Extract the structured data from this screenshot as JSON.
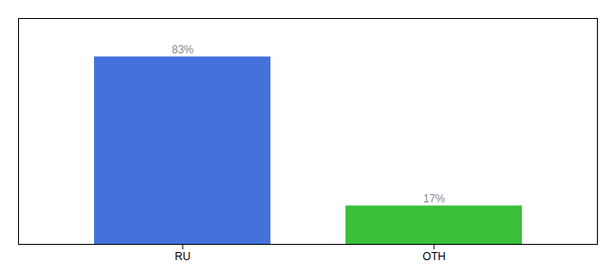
{
  "chart_data": {
    "type": "bar",
    "categories": [
      "RU",
      "OTH"
    ],
    "values": [
      83,
      17
    ],
    "colors": [
      "#4472dd",
      "#3abf3a"
    ],
    "value_labels": [
      "83%",
      "17%"
    ],
    "data_labels": true,
    "ylim": [
      0,
      100
    ],
    "tick_labels": "x"
  }
}
